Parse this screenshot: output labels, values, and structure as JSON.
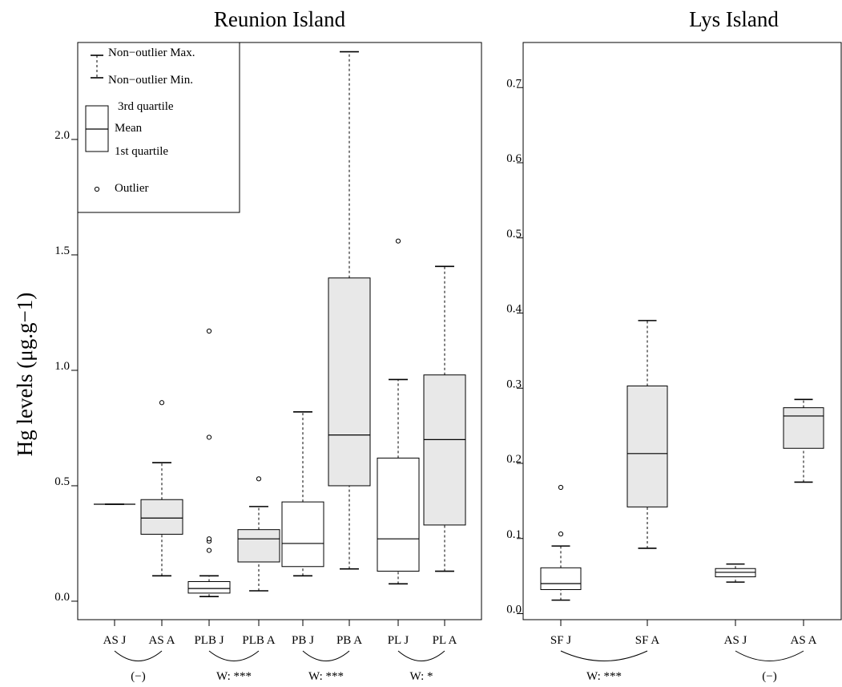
{
  "chart_data": [
    {
      "type": "boxplot",
      "title": "Reunion Island",
      "ylabel": "Hg levels (μg.g−1)",
      "ylim": [
        -0.08,
        2.42
      ],
      "yticks": [
        0.0,
        0.5,
        1.0,
        1.5,
        2.0
      ],
      "ytick_labels": [
        "0.0",
        "0.5",
        "1.0",
        "1.5",
        "2.0"
      ],
      "legend": {
        "placement": "top-left",
        "items": {
          "max": "Non−outlier Max.",
          "min": "Non−outlier Min.",
          "q3": "3rd quartile",
          "mean": "Mean",
          "q1": "1st quartile",
          "outlier": "Outlier"
        }
      },
      "categories": [
        "AS J",
        "AS A",
        "PLB J",
        "PLB A",
        "PB J",
        "PB A",
        "PL J",
        "PL A"
      ],
      "boxes": [
        {
          "label": "AS J",
          "fill": "#ffffff",
          "min": 0.42,
          "q1": 0.42,
          "mid": 0.42,
          "q3": 0.42,
          "max": 0.42,
          "outliers": []
        },
        {
          "label": "AS A",
          "fill": "#e8e8e8",
          "min": 0.11,
          "q1": 0.29,
          "mid": 0.36,
          "q3": 0.44,
          "max": 0.6,
          "outliers": [
            0.86
          ]
        },
        {
          "label": "PLB J",
          "fill": "#ffffff",
          "min": 0.02,
          "q1": 0.035,
          "mid": 0.055,
          "q3": 0.085,
          "max": 0.11,
          "outliers": [
            0.22,
            0.26,
            0.27,
            0.71,
            1.17
          ]
        },
        {
          "label": "PLB A",
          "fill": "#e8e8e8",
          "min": 0.045,
          "q1": 0.17,
          "mid": 0.27,
          "q3": 0.31,
          "max": 0.41,
          "outliers": [
            0.53
          ]
        },
        {
          "label": "PB J",
          "fill": "#ffffff",
          "min": 0.11,
          "q1": 0.15,
          "mid": 0.25,
          "q3": 0.43,
          "max": 0.82,
          "outliers": []
        },
        {
          "label": "PB A",
          "fill": "#e8e8e8",
          "min": 0.14,
          "q1": 0.5,
          "mid": 0.72,
          "q3": 1.4,
          "max": 2.38,
          "outliers": []
        },
        {
          "label": "PL J",
          "fill": "#ffffff",
          "min": 0.075,
          "q1": 0.13,
          "mid": 0.27,
          "q3": 0.62,
          "max": 0.96,
          "outliers": [
            1.56
          ]
        },
        {
          "label": "PL A",
          "fill": "#e8e8e8",
          "min": 0.13,
          "q1": 0.33,
          "mid": 0.7,
          "q3": 0.98,
          "max": 1.45,
          "outliers": []
        }
      ],
      "comparisons": [
        {
          "pair": [
            "AS J",
            "AS A"
          ],
          "label": "(−)"
        },
        {
          "pair": [
            "PLB J",
            "PLB A"
          ],
          "label": "W: ***"
        },
        {
          "pair": [
            "PB J",
            "PB A"
          ],
          "label": "W: ***"
        },
        {
          "pair": [
            "PL J",
            "PL A"
          ],
          "label": "W: *"
        }
      ]
    },
    {
      "type": "boxplot",
      "title": "Lys Island",
      "ylim": [
        -0.008,
        0.76
      ],
      "yticks": [
        0.0,
        0.1,
        0.2,
        0.3,
        0.4,
        0.5,
        0.6,
        0.7
      ],
      "ytick_labels": [
        "0.0",
        "0.1",
        "0.2",
        "0.3",
        "0.4",
        "0.5",
        "0.6",
        "0.7"
      ],
      "categories": [
        "SF J",
        "SF A",
        "AS J",
        "AS A"
      ],
      "boxes": [
        {
          "label": "SF J",
          "fill": "#ffffff",
          "min": 0.018,
          "q1": 0.032,
          "mid": 0.04,
          "q3": 0.061,
          "max": 0.09,
          "outliers": [
            0.106,
            0.168
          ]
        },
        {
          "label": "SF A",
          "fill": "#e8e8e8",
          "min": 0.087,
          "q1": 0.142,
          "mid": 0.213,
          "q3": 0.303,
          "max": 0.39,
          "outliers": []
        },
        {
          "label": "AS J",
          "fill": "#ffffff",
          "min": 0.042,
          "q1": 0.049,
          "mid": 0.055,
          "q3": 0.06,
          "max": 0.066,
          "outliers": []
        },
        {
          "label": "AS A",
          "fill": "#e8e8e8",
          "min": 0.175,
          "q1": 0.22,
          "mid": 0.263,
          "q3": 0.274,
          "max": 0.285,
          "outliers": []
        }
      ],
      "comparisons": [
        {
          "pair": [
            "SF J",
            "SF A"
          ],
          "label": "W: ***"
        },
        {
          "pair": [
            "AS J",
            "AS A"
          ],
          "label": "(−)"
        }
      ]
    }
  ]
}
